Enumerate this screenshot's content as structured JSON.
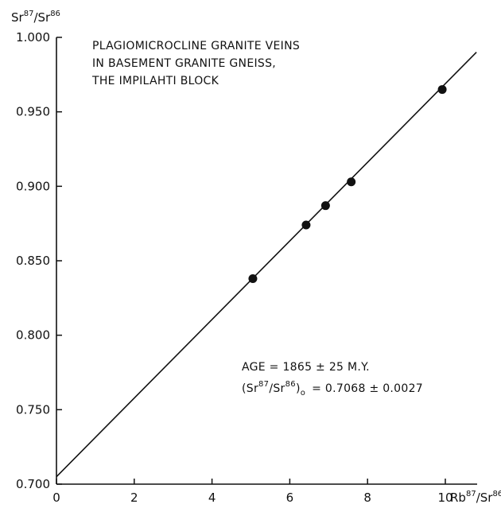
{
  "chart_data": {
    "type": "scatter",
    "x_label_text": "Rb",
    "x_label_sup": "87",
    "x_label_slash": "/Sr",
    "x_label_sup2": "86",
    "y_label_text": "Sr",
    "y_label_sup": "87",
    "y_label_slash": "/Sr",
    "y_label_sup2": "86",
    "xlim": [
      0,
      10.8
    ],
    "ylim": [
      0.7,
      1.0
    ],
    "x_ticks": [
      0,
      2,
      4,
      6,
      8,
      10
    ],
    "x_tick_labels": [
      "0",
      "2",
      "4",
      "6",
      "8",
      "10"
    ],
    "y_ticks": [
      0.7,
      0.75,
      0.8,
      0.85,
      0.9,
      0.95,
      1.0
    ],
    "y_tick_labels": [
      "0.700",
      "0.750",
      "0.800",
      "0.850",
      "0.900",
      "0.950",
      "1.000"
    ],
    "points": [
      {
        "x": 5.05,
        "y": 0.838
      },
      {
        "x": 6.42,
        "y": 0.874
      },
      {
        "x": 6.92,
        "y": 0.887
      },
      {
        "x": 7.58,
        "y": 0.903
      },
      {
        "x": 9.92,
        "y": 0.965
      }
    ],
    "fit_line": {
      "x0": 0,
      "y0": 0.705,
      "x1": 10.8,
      "y1": 0.99
    },
    "title_lines": [
      "PLAGIOMICROCLINE GRANITE VEINS",
      "IN BASEMENT GRANITE GNEISS,",
      "THE IMPILAHTI BLOCK"
    ],
    "age_text": "AGE = 1865 ± 25 M.Y.",
    "initial_ratio": {
      "open": "(Sr",
      "sup1": "87",
      "mid": "/Sr",
      "sup2": "86",
      "close": ")",
      "sub": "o",
      "value": "= 0.7068 ± 0.0027"
    },
    "grid": false,
    "colors": {
      "ink": "#111111",
      "background": "#ffffff"
    }
  }
}
